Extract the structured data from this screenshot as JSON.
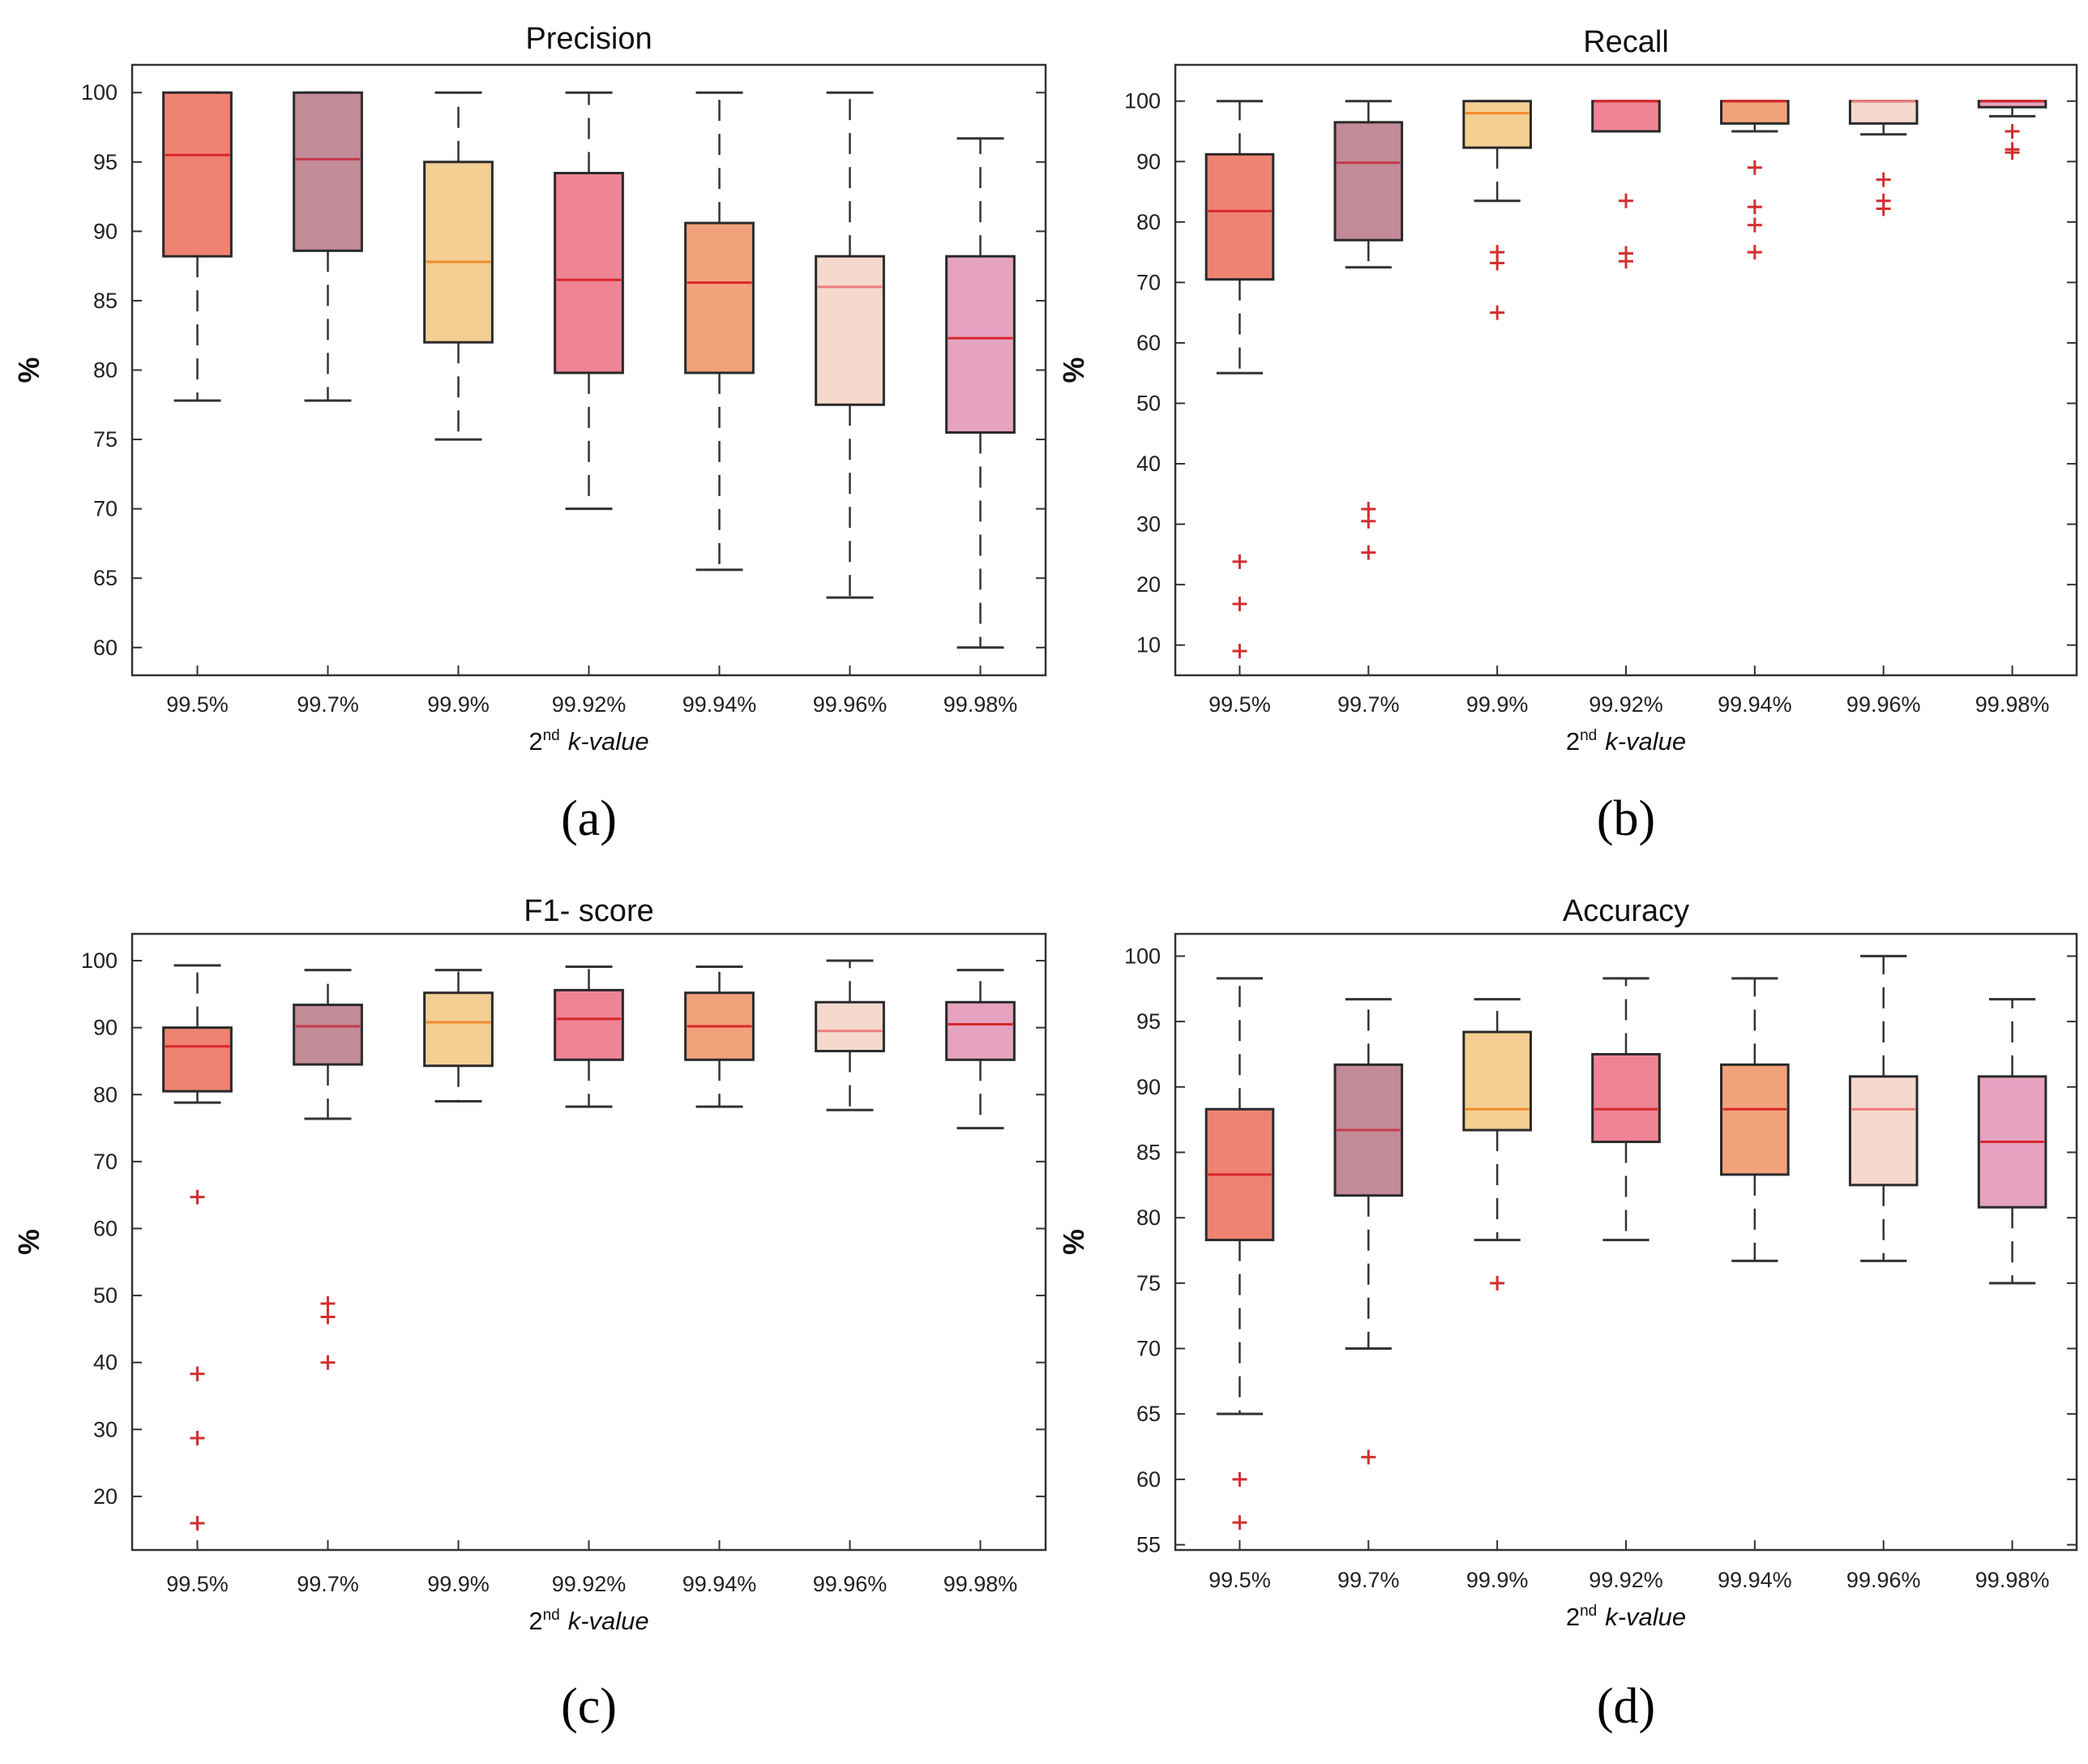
{
  "figure": {
    "categories": [
      "99.5%",
      "99.7%",
      "99.9%",
      "99.92%",
      "99.94%",
      "99.96%",
      "99.98%"
    ],
    "box_colors": [
      "#ee8371",
      "#c38a97",
      "#f4cf93",
      "#ef8494",
      "#f2a27a",
      "#f5d9cc",
      "#e5a3c0"
    ],
    "median_colors": [
      "#d8262a",
      "#c43a4a",
      "#ef8a2a",
      "#d8262a",
      "#d8262a",
      "#ef7a7a",
      "#d8262a"
    ],
    "outlier_color": "#d32f2f",
    "xlabel": {
      "sup": "nd",
      "main": "2",
      "italic": "k-value"
    }
  },
  "chart_data": [
    {
      "type": "box",
      "panel_label": "(a)",
      "title": "Precision",
      "ylabel": "%",
      "xlabel": "2nd k-value",
      "ylim": [
        58,
        102
      ],
      "yticks": [
        60,
        65,
        70,
        75,
        80,
        85,
        90,
        95,
        100
      ],
      "boxes": [
        {
          "category": "99.5%",
          "whisker_low": 77.8,
          "q1": 88.2,
          "median": 95.5,
          "q3": 100,
          "whisker_high": 100,
          "outliers": []
        },
        {
          "category": "99.7%",
          "whisker_low": 77.8,
          "q1": 88.6,
          "median": 95.2,
          "q3": 100,
          "whisker_high": 100,
          "outliers": []
        },
        {
          "category": "99.9%",
          "whisker_low": 75.0,
          "q1": 82.0,
          "median": 87.8,
          "q3": 95.0,
          "whisker_high": 100,
          "outliers": []
        },
        {
          "category": "99.92%",
          "whisker_low": 70.0,
          "q1": 79.8,
          "median": 86.5,
          "q3": 94.2,
          "whisker_high": 100,
          "outliers": []
        },
        {
          "category": "99.94%",
          "whisker_low": 65.6,
          "q1": 79.8,
          "median": 86.3,
          "q3": 90.6,
          "whisker_high": 100,
          "outliers": []
        },
        {
          "category": "99.96%",
          "whisker_low": 63.6,
          "q1": 77.5,
          "median": 86.0,
          "q3": 88.2,
          "whisker_high": 100,
          "outliers": []
        },
        {
          "category": "99.98%",
          "whisker_low": 60.0,
          "q1": 75.5,
          "median": 82.3,
          "q3": 88.2,
          "whisker_high": 96.7,
          "outliers": []
        }
      ]
    },
    {
      "type": "box",
      "panel_label": "(b)",
      "title": "Recall",
      "ylabel": "%",
      "xlabel": "2nd k-value",
      "ylim": [
        5,
        106
      ],
      "yticks": [
        10,
        20,
        30,
        40,
        50,
        60,
        70,
        80,
        90,
        100
      ],
      "boxes": [
        {
          "category": "99.5%",
          "whisker_low": 55.0,
          "q1": 70.5,
          "median": 81.8,
          "q3": 91.2,
          "whisker_high": 100,
          "outliers": [
            23.8,
            16.8,
            9.0
          ]
        },
        {
          "category": "99.7%",
          "whisker_low": 72.5,
          "q1": 77.0,
          "median": 89.8,
          "q3": 96.5,
          "whisker_high": 100,
          "outliers": [
            32.5,
            30.5,
            25.3
          ]
        },
        {
          "category": "99.9%",
          "whisker_low": 83.5,
          "q1": 92.3,
          "median": 98.0,
          "q3": 100,
          "whisker_high": 100,
          "outliers": [
            75.0,
            73.2,
            65.0
          ]
        },
        {
          "category": "99.92%",
          "whisker_low": 95.0,
          "q1": 95.0,
          "median": 100,
          "q3": 100,
          "whisker_high": 100,
          "outliers": [
            83.5,
            74.8,
            73.5
          ]
        },
        {
          "category": "99.94%",
          "whisker_low": 95.0,
          "q1": 96.3,
          "median": 100,
          "q3": 100,
          "whisker_high": 100,
          "outliers": [
            89.0,
            82.5,
            79.5,
            75.0
          ]
        },
        {
          "category": "99.96%",
          "whisker_low": 94.5,
          "q1": 96.3,
          "median": 100,
          "q3": 100,
          "whisker_high": 100,
          "outliers": [
            87.0,
            83.5,
            82.2
          ]
        },
        {
          "category": "99.98%",
          "whisker_low": 97.5,
          "q1": 99.0,
          "median": 100,
          "q3": 100,
          "whisker_high": 100,
          "outliers": [
            95.0,
            92.0,
            91.5
          ]
        }
      ]
    },
    {
      "type": "box",
      "panel_label": "(c)",
      "title": "F1- score",
      "ylabel": "%",
      "xlabel": "2nd k-value",
      "ylim": [
        12,
        104
      ],
      "yticks": [
        20,
        30,
        40,
        50,
        60,
        70,
        80,
        90,
        100
      ],
      "boxes": [
        {
          "category": "99.5%",
          "whisker_low": 78.8,
          "q1": 80.5,
          "median": 87.2,
          "q3": 90.0,
          "whisker_high": 99.3,
          "outliers": [
            64.7,
            38.3,
            28.7,
            16.0
          ]
        },
        {
          "category": "99.7%",
          "whisker_low": 76.4,
          "q1": 84.5,
          "median": 90.2,
          "q3": 93.4,
          "whisker_high": 98.6,
          "outliers": [
            48.8,
            46.8,
            40.0
          ]
        },
        {
          "category": "99.9%",
          "whisker_low": 79.0,
          "q1": 84.3,
          "median": 90.8,
          "q3": 95.2,
          "whisker_high": 98.6,
          "outliers": []
        },
        {
          "category": "99.92%",
          "whisker_low": 78.2,
          "q1": 85.2,
          "median": 91.3,
          "q3": 95.6,
          "whisker_high": 99.1,
          "outliers": []
        },
        {
          "category": "99.94%",
          "whisker_low": 78.2,
          "q1": 85.2,
          "median": 90.2,
          "q3": 95.2,
          "whisker_high": 99.1,
          "outliers": []
        },
        {
          "category": "99.96%",
          "whisker_low": 77.7,
          "q1": 86.5,
          "median": 89.5,
          "q3": 93.8,
          "whisker_high": 100,
          "outliers": []
        },
        {
          "category": "99.98%",
          "whisker_low": 75.0,
          "q1": 85.2,
          "median": 90.5,
          "q3": 93.8,
          "whisker_high": 98.6,
          "outliers": []
        }
      ]
    },
    {
      "type": "box",
      "panel_label": "(d)",
      "title": "Accuracy",
      "ylabel": "%",
      "xlabel": "2nd k-value",
      "ylim": [
        54.6,
        101.7
      ],
      "yticks": [
        55,
        60,
        65,
        70,
        75,
        80,
        85,
        90,
        95,
        100
      ],
      "boxes": [
        {
          "category": "99.5%",
          "whisker_low": 65.0,
          "q1": 78.3,
          "median": 83.3,
          "q3": 88.3,
          "whisker_high": 98.3,
          "outliers": [
            60.0,
            56.7
          ]
        },
        {
          "category": "99.7%",
          "whisker_low": 70.0,
          "q1": 81.7,
          "median": 86.7,
          "q3": 91.7,
          "whisker_high": 96.7,
          "outliers": [
            61.7
          ]
        },
        {
          "category": "99.9%",
          "whisker_low": 78.3,
          "q1": 86.7,
          "median": 88.3,
          "q3": 94.2,
          "whisker_high": 96.7,
          "outliers": [
            75.0
          ]
        },
        {
          "category": "99.92%",
          "whisker_low": 78.3,
          "q1": 85.8,
          "median": 88.3,
          "q3": 92.5,
          "whisker_high": 98.3,
          "outliers": []
        },
        {
          "category": "99.94%",
          "whisker_low": 76.7,
          "q1": 83.3,
          "median": 88.3,
          "q3": 91.7,
          "whisker_high": 98.3,
          "outliers": []
        },
        {
          "category": "99.96%",
          "whisker_low": 76.7,
          "q1": 82.5,
          "median": 88.3,
          "q3": 90.8,
          "whisker_high": 100,
          "outliers": []
        },
        {
          "category": "99.98%",
          "whisker_low": 75.0,
          "q1": 80.8,
          "median": 85.8,
          "q3": 90.8,
          "whisker_high": 96.7,
          "outliers": []
        }
      ]
    }
  ]
}
